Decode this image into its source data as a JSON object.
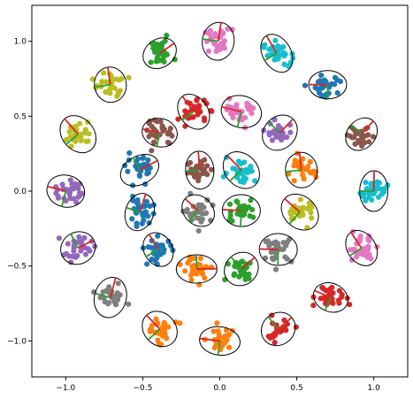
{
  "chart_data": {
    "type": "scatter",
    "title": "",
    "xlabel": "",
    "ylabel": "",
    "xlim": [
      -1.22,
      1.22
    ],
    "ylim": [
      -1.24,
      1.24
    ],
    "xticks": [
      -1.0,
      -0.5,
      0.0,
      0.5,
      1.0
    ],
    "yticks": [
      -1.0,
      -0.5,
      0.0,
      0.5,
      1.0
    ],
    "xtick_labels": [
      "−1.0",
      "−0.5",
      "0.0",
      "0.5",
      "1.0"
    ],
    "ytick_labels": [
      "−1.0",
      "−0.5",
      "0.0",
      "0.5",
      "1.0"
    ],
    "grid": false,
    "legend": false,
    "palette": [
      "#1f77b4",
      "#ff7f0e",
      "#2ca02c",
      "#d62728",
      "#9467bd",
      "#8c564b",
      "#e377c2",
      "#7f7f7f",
      "#bcbd22",
      "#17becf"
    ],
    "points_per_cluster": 30,
    "clusters": [
      {
        "cx": -0.39,
        "cy": 0.92,
        "color": "#2ca02c"
      },
      {
        "cx": -0.01,
        "cy": 1.0,
        "color": "#e377c2"
      },
      {
        "cx": 0.37,
        "cy": 0.92,
        "color": "#17becf"
      },
      {
        "cx": -0.71,
        "cy": 0.71,
        "color": "#bcbd22"
      },
      {
        "cx": 0.7,
        "cy": 0.71,
        "color": "#1f77b4"
      },
      {
        "cx": -0.92,
        "cy": 0.38,
        "color": "#bcbd22"
      },
      {
        "cx": 0.92,
        "cy": 0.38,
        "color": "#8c564b"
      },
      {
        "cx": -1.0,
        "cy": 0.0,
        "color": "#9467bd"
      },
      {
        "cx": 1.0,
        "cy": 0.0,
        "color": "#17becf"
      },
      {
        "cx": -0.92,
        "cy": -0.38,
        "color": "#9467bd"
      },
      {
        "cx": 0.92,
        "cy": -0.38,
        "color": "#e377c2"
      },
      {
        "cx": -0.71,
        "cy": -0.71,
        "color": "#7f7f7f"
      },
      {
        "cx": 0.72,
        "cy": -0.71,
        "color": "#d62728"
      },
      {
        "cx": -0.39,
        "cy": -0.92,
        "color": "#ff7f0e"
      },
      {
        "cx": 0.0,
        "cy": -1.0,
        "color": "#ff7f0e"
      },
      {
        "cx": 0.38,
        "cy": -0.92,
        "color": "#d62728"
      },
      {
        "cx": -0.17,
        "cy": 0.53,
        "color": "#d62728"
      },
      {
        "cx": 0.14,
        "cy": 0.53,
        "color": "#e377c2"
      },
      {
        "cx": -0.39,
        "cy": 0.39,
        "color": "#8c564b"
      },
      {
        "cx": 0.39,
        "cy": 0.39,
        "color": "#9467bd"
      },
      {
        "cx": -0.52,
        "cy": 0.14,
        "color": "#1f77b4"
      },
      {
        "cx": 0.53,
        "cy": 0.14,
        "color": "#ff7f0e"
      },
      {
        "cx": -0.52,
        "cy": -0.14,
        "color": "#1f77b4"
      },
      {
        "cx": 0.52,
        "cy": -0.14,
        "color": "#bcbd22"
      },
      {
        "cx": -0.4,
        "cy": -0.39,
        "color": "#1f77b4"
      },
      {
        "cx": 0.38,
        "cy": -0.39,
        "color": "#7f7f7f"
      },
      {
        "cx": -0.15,
        "cy": -0.52,
        "color": "#ff7f0e"
      },
      {
        "cx": 0.14,
        "cy": -0.52,
        "color": "#2ca02c"
      },
      {
        "cx": -0.13,
        "cy": 0.14,
        "color": "#8c564b"
      },
      {
        "cx": 0.14,
        "cy": 0.14,
        "color": "#17becf"
      },
      {
        "cx": -0.14,
        "cy": -0.13,
        "color": "#7f7f7f"
      },
      {
        "cx": 0.14,
        "cy": -0.13,
        "color": "#2ca02c"
      }
    ]
  }
}
